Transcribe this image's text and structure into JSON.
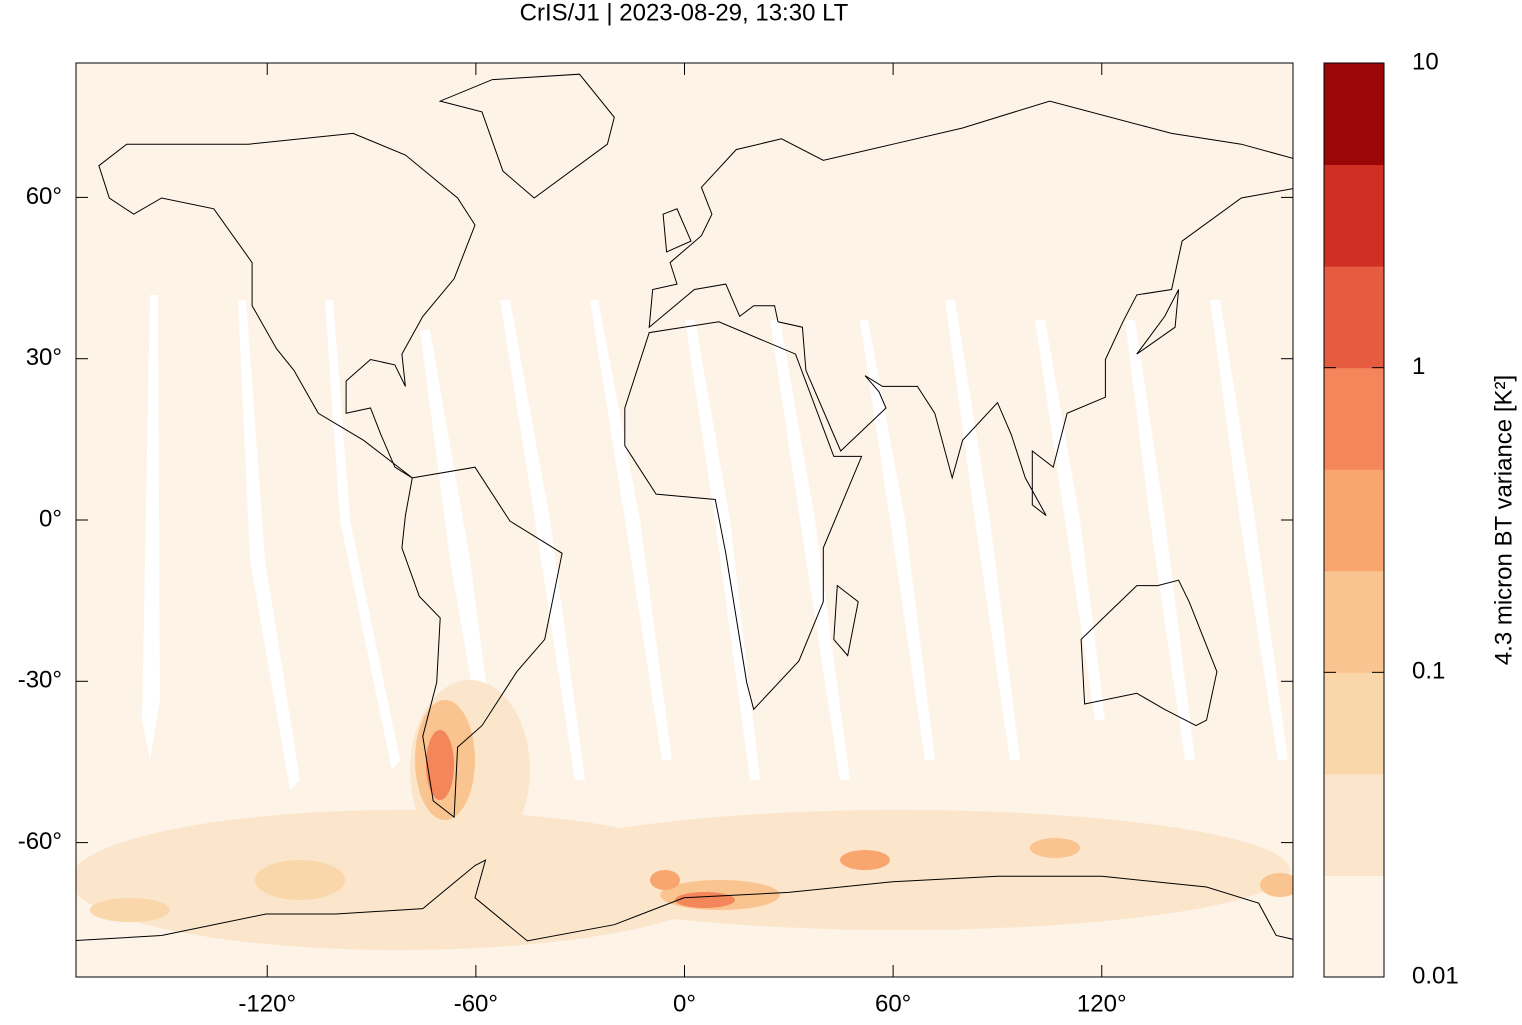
{
  "chart_data": {
    "type": "map",
    "title": "CrIS/J1 | 2023-08-29, 13:30 LT",
    "xlim": [
      -175,
      175
    ],
    "ylim": [
      -85,
      85
    ],
    "xticks": [
      {
        "value": -120,
        "label": "-120°"
      },
      {
        "value": -60,
        "label": "-60°"
      },
      {
        "value": 0,
        "label": "0°"
      },
      {
        "value": 60,
        "label": "60°"
      },
      {
        "value": 120,
        "label": "120°"
      }
    ],
    "yticks": [
      {
        "value": 60,
        "label": "60°"
      },
      {
        "value": 30,
        "label": "30°"
      },
      {
        "value": 0,
        "label": "0°"
      },
      {
        "value": -30,
        "label": "-30°"
      },
      {
        "value": -60,
        "label": "-60°"
      }
    ],
    "colorbar": {
      "label": "4.3 micron BT variance [K²]",
      "lim": [
        0.01,
        10
      ],
      "log": true,
      "ticks": [
        0.01,
        0.1,
        1,
        10
      ],
      "colors": [
        "#fdf3e7",
        "#fbe6cb",
        "#fad6ab",
        "#f9c48f",
        "#f8a56e",
        "#f3865a",
        "#e65c40",
        "#d02f24",
        "#9b0707"
      ]
    }
  }
}
